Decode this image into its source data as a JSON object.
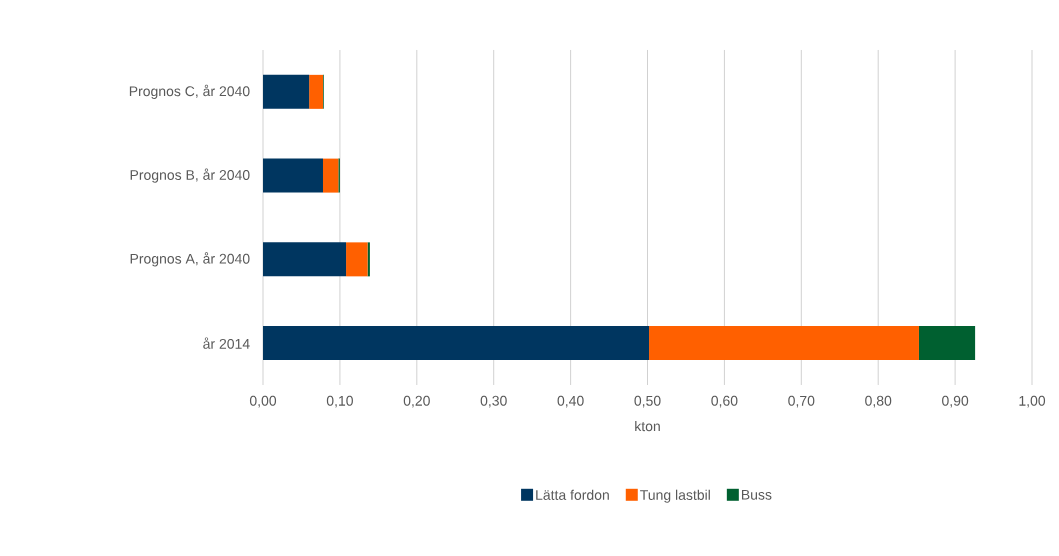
{
  "chart_data": {
    "type": "bar",
    "orientation": "horizontal",
    "stacked": true,
    "xlabel": "kton",
    "categories": [
      "Prognos C, år 2040",
      "Prognos B, år 2040",
      "Prognos A, år 2040",
      "år 2014"
    ],
    "series": [
      {
        "name": "Lätta fordon",
        "color": "#003660",
        "values": [
          0.06,
          0.078,
          0.108,
          0.502
        ]
      },
      {
        "name": "Tung lastbil",
        "color": "#ff6000",
        "values": [
          0.018,
          0.02,
          0.028,
          0.351
        ]
      },
      {
        "name": "Buss",
        "color": "#006030",
        "values": [
          0.001,
          0.002,
          0.003,
          0.073
        ]
      }
    ],
    "xlim": [
      0,
      1
    ],
    "xticks": [
      {
        "value": 0,
        "label": "0,00"
      },
      {
        "value": 0.1,
        "label": "0,10"
      },
      {
        "value": 0.2,
        "label": "0,20"
      },
      {
        "value": 0.3,
        "label": "0,30"
      },
      {
        "value": 0.4,
        "label": "0,40"
      },
      {
        "value": 0.5,
        "label": "0,50"
      },
      {
        "value": 0.6,
        "label": "0,60"
      },
      {
        "value": 0.7,
        "label": "0,70"
      },
      {
        "value": 0.8,
        "label": "0,80"
      },
      {
        "value": 0.9,
        "label": "0,90"
      },
      {
        "value": 1.0,
        "label": "1,00"
      }
    ],
    "grid": "x",
    "legend": "bottom"
  }
}
